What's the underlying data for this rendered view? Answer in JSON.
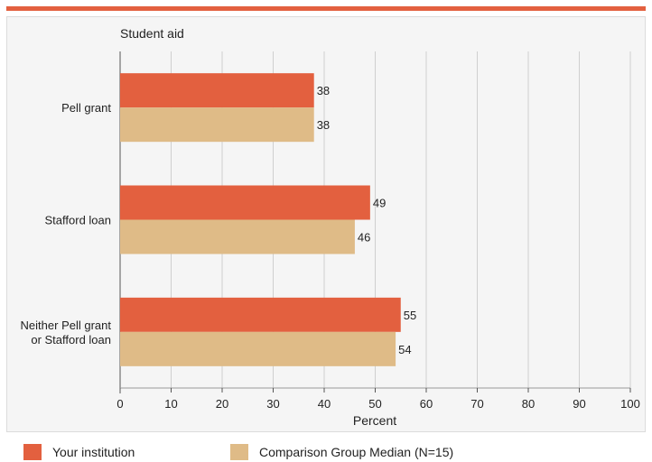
{
  "colors": {
    "accent": "#e3603f",
    "series1": "#e3603f",
    "series2": "#dfbb87"
  },
  "chart_data": {
    "type": "bar",
    "orientation": "horizontal",
    "title": "Student aid",
    "categories": [
      "Pell grant",
      "Stafford loan",
      "Neither Pell grant or Stafford loan"
    ],
    "category_label_lines": [
      [
        "Pell grant"
      ],
      [
        "Stafford loan"
      ],
      [
        "Neither Pell grant",
        "or Stafford loan"
      ]
    ],
    "series": [
      {
        "name": "Your institution",
        "values": [
          38,
          49,
          55
        ],
        "color": "#e3603f"
      },
      {
        "name": "Comparison Group Median (N=15)",
        "values": [
          38,
          46,
          54
        ],
        "color": "#dfbb87"
      }
    ],
    "xlabel": "Percent",
    "ylabel": "",
    "xlim": [
      0,
      100
    ],
    "xticks": [
      0,
      10,
      20,
      30,
      40,
      50,
      60,
      70,
      80,
      90,
      100
    ],
    "grid": true,
    "legend": "bottom"
  },
  "legend": {
    "items": [
      "Your institution",
      "Comparison Group Median (N=15)"
    ]
  }
}
